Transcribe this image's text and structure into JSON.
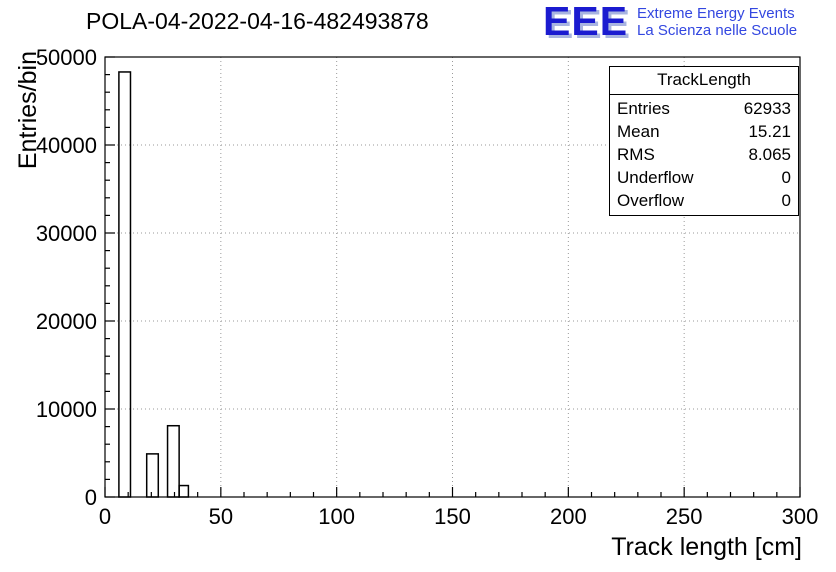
{
  "logo": {
    "acronym": "EEE",
    "line1": "Extreme Energy Events",
    "line2": "La Scienza nelle Scuole"
  },
  "chart_data": {
    "type": "bar",
    "title": "POLA-04-2022-04-16-482493878",
    "xlabel": "Track length [cm]",
    "ylabel": "Entries/bin",
    "xlim": [
      0,
      300
    ],
    "ylim": [
      0,
      50000
    ],
    "x_ticks": [
      0,
      50,
      100,
      150,
      200,
      250,
      300
    ],
    "y_ticks": [
      0,
      10000,
      20000,
      30000,
      40000,
      50000
    ],
    "x_minor_step": 10,
    "y_minor_step": 2000,
    "grid": true,
    "legend_position": "none",
    "bins": [
      {
        "x0": 6,
        "x1": 11,
        "count": 48300
      },
      {
        "x0": 18,
        "x1": 23,
        "count": 4900
      },
      {
        "x0": 27,
        "x1": 32,
        "count": 8100
      },
      {
        "x0": 32,
        "x1": 36,
        "count": 1300
      }
    ],
    "stats": {
      "title": "TrackLength",
      "rows": [
        {
          "label": "Entries",
          "value": "62933"
        },
        {
          "label": "Mean",
          "value": "15.21"
        },
        {
          "label": "RMS",
          "value": "8.065"
        },
        {
          "label": "Underflow",
          "value": "0"
        },
        {
          "label": "Overflow",
          "value": "0"
        }
      ]
    }
  },
  "colors": {
    "background": "#ffffff",
    "axis": "#000000",
    "grid": "#9a9a9a",
    "bar_outline": "#000000",
    "logo_blue": "#1b1bd0",
    "logo_shadow": "#a8b4e0",
    "logo_text": "#3347e0"
  }
}
